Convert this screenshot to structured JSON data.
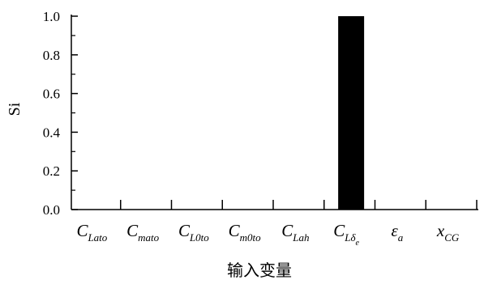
{
  "chart_data": {
    "type": "bar",
    "categories": [
      {
        "base": "C",
        "sub": "Lato"
      },
      {
        "base": "C",
        "sub": "mato"
      },
      {
        "base": "C",
        "sub": "L0to"
      },
      {
        "base": "C",
        "sub": "m0to"
      },
      {
        "base": "C",
        "sub": "Lah"
      },
      {
        "base": "C",
        "sub": "Lδ",
        "subsub": "e"
      },
      {
        "base": "ε",
        "sub": "a"
      },
      {
        "base": "x",
        "sub": "CG"
      }
    ],
    "values": [
      0,
      0,
      0,
      0,
      0,
      1.0,
      0,
      0
    ],
    "xlabel": "输入变量",
    "ylabel": "Si",
    "ylim": [
      0,
      1.0
    ],
    "yticks": [
      "0.0",
      "0.2",
      "0.4",
      "0.6",
      "0.8",
      "1.0"
    ],
    "bar_color": "#000000",
    "grid": false
  }
}
